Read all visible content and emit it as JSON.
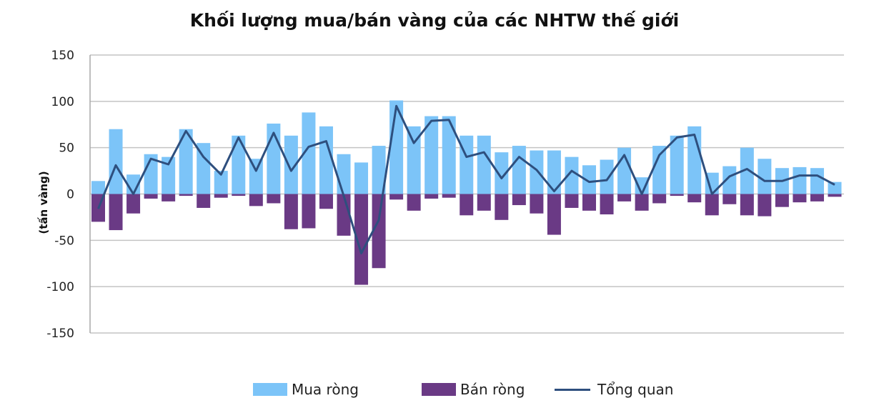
{
  "chart_data": {
    "type": "bar",
    "title": "Khối lượng mua/bán vàng của các NHTW thế giới",
    "ylabel": "(tấn vàng)",
    "ylim": [
      -150,
      150
    ],
    "yticks": [
      150,
      100,
      50,
      0,
      -50,
      -100,
      -150
    ],
    "grid": true,
    "legend_position": "bottom",
    "series": [
      {
        "name": "Mua ròng",
        "type": "bar",
        "color": "#7cc4f8",
        "values": [
          14,
          70,
          21,
          43,
          40,
          70,
          55,
          25,
          63,
          38,
          76,
          63,
          88,
          73,
          43,
          34,
          52,
          101,
          73,
          84,
          84,
          63,
          63,
          45,
          52,
          47,
          47,
          40,
          31,
          37,
          50,
          18,
          52,
          63,
          73,
          23,
          30,
          50,
          38,
          28,
          29,
          28,
          13
        ]
      },
      {
        "name": "Bán ròng",
        "type": "bar",
        "color": "#6a3a85",
        "values": [
          -30,
          -39,
          -21,
          -5,
          -8,
          -2,
          -15,
          -4,
          -2,
          -13,
          -10,
          -38,
          -37,
          -16,
          -45,
          -98,
          -80,
          -6,
          -18,
          -5,
          -4,
          -23,
          -18,
          -28,
          -12,
          -21,
          -44,
          -15,
          -18,
          -22,
          -8,
          -18,
          -10,
          -2,
          -9,
          -23,
          -11,
          -23,
          -24,
          -14,
          -9,
          -8,
          -3
        ]
      },
      {
        "name": "Tổng quan",
        "type": "line",
        "color": "#2e4f7e",
        "values": [
          -16,
          31,
          0,
          38,
          32,
          68,
          40,
          21,
          61,
          25,
          66,
          25,
          51,
          57,
          -2,
          -64,
          -28,
          95,
          55,
          79,
          80,
          40,
          45,
          17,
          40,
          26,
          3,
          25,
          13,
          15,
          42,
          0,
          42,
          61,
          64,
          0,
          19,
          27,
          14,
          14,
          20,
          20,
          10
        ]
      }
    ]
  }
}
